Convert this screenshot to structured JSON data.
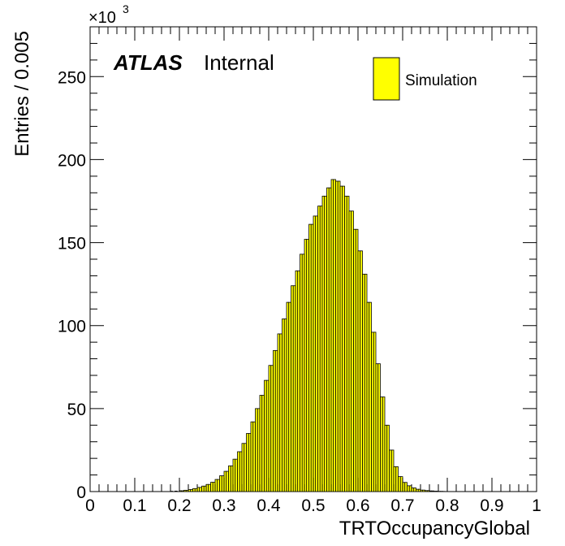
{
  "chart_data": {
    "type": "bar",
    "xlabel": "TRTOccupancyGlobal",
    "ylabel": "Entries / 0.005",
    "y_multiplier_label": "×10",
    "y_multiplier_exponent": "3",
    "atlas_label": "ATLAS",
    "internal_label": "Internal",
    "xlim": [
      0,
      1
    ],
    "ylim": [
      0,
      280
    ],
    "x_ticks": [
      "0",
      "0.1",
      "0.2",
      "0.3",
      "0.4",
      "0.5",
      "0.6",
      "0.7",
      "0.8",
      "0.9",
      "1"
    ],
    "y_ticks": [
      "0",
      "50",
      "100",
      "150",
      "200",
      "250"
    ],
    "legend_position": "top-right",
    "series": [
      {
        "name": "Simulation",
        "color": "#ffff00",
        "edge_color": "#000000",
        "bin_width": 0.005,
        "bin_low_edges": [
          0.18,
          0.19,
          0.2,
          0.205,
          0.21,
          0.215,
          0.22,
          0.225,
          0.23,
          0.235,
          0.24,
          0.245,
          0.25,
          0.255,
          0.26,
          0.265,
          0.27,
          0.275,
          0.28,
          0.285,
          0.29,
          0.295,
          0.3,
          0.305,
          0.31,
          0.315,
          0.32,
          0.325,
          0.33,
          0.335,
          0.34,
          0.345,
          0.35,
          0.355,
          0.36,
          0.365,
          0.37,
          0.375,
          0.38,
          0.385,
          0.39,
          0.395,
          0.4,
          0.405,
          0.41,
          0.415,
          0.42,
          0.425,
          0.43,
          0.435,
          0.44,
          0.445,
          0.45,
          0.455,
          0.46,
          0.465,
          0.47,
          0.475,
          0.48,
          0.485,
          0.49,
          0.495,
          0.5,
          0.505,
          0.51,
          0.515,
          0.52,
          0.525,
          0.53,
          0.535,
          0.54,
          0.545,
          0.55,
          0.555,
          0.56,
          0.565,
          0.57,
          0.575,
          0.58,
          0.585,
          0.59,
          0.595,
          0.6,
          0.605,
          0.61,
          0.615,
          0.62,
          0.625,
          0.63,
          0.635,
          0.64,
          0.645,
          0.65,
          0.655,
          0.66,
          0.665,
          0.67,
          0.675,
          0.68,
          0.685,
          0.69,
          0.695,
          0.7,
          0.705,
          0.71,
          0.715,
          0.72,
          0.725,
          0.73,
          0.735,
          0.74,
          0.745,
          0.75,
          0.755,
          0.76,
          0.765,
          0.77,
          0.775,
          0.78,
          0.785,
          0.79
        ],
        "values": [
          0.2,
          0.3,
          0.5,
          0.5,
          0.8,
          0.8,
          1.2,
          1.2,
          1.8,
          1.8,
          2.5,
          2.5,
          3.3,
          3.3,
          4.3,
          4.3,
          5.6,
          5.6,
          7.3,
          7.3,
          9.5,
          9.5,
          12.2,
          12.2,
          15.5,
          15.5,
          19.5,
          19.5,
          24,
          24,
          29,
          29,
          35,
          35,
          42,
          42,
          50,
          50,
          58,
          58,
          67,
          67,
          76,
          76,
          85,
          85,
          95,
          95,
          104,
          104,
          114,
          114,
          124,
          124,
          133,
          133,
          143,
          143,
          152,
          152,
          161,
          161,
          166,
          166,
          172,
          172,
          178,
          178,
          183,
          183,
          188,
          188,
          187,
          187,
          184,
          184,
          178,
          178,
          169,
          169,
          158,
          158,
          145,
          145,
          131,
          131,
          114,
          114,
          96,
          96,
          77,
          77,
          57,
          57,
          40,
          40,
          25,
          25,
          15,
          15,
          9,
          9,
          5.5,
          5.5,
          3.5,
          3.5,
          2.2,
          2.2,
          1.4,
          1.4,
          0.9,
          0.9,
          0.6,
          0.6,
          0.4,
          0.4,
          0.25,
          0.25,
          0.15,
          0.15,
          0.1
        ]
      }
    ]
  }
}
